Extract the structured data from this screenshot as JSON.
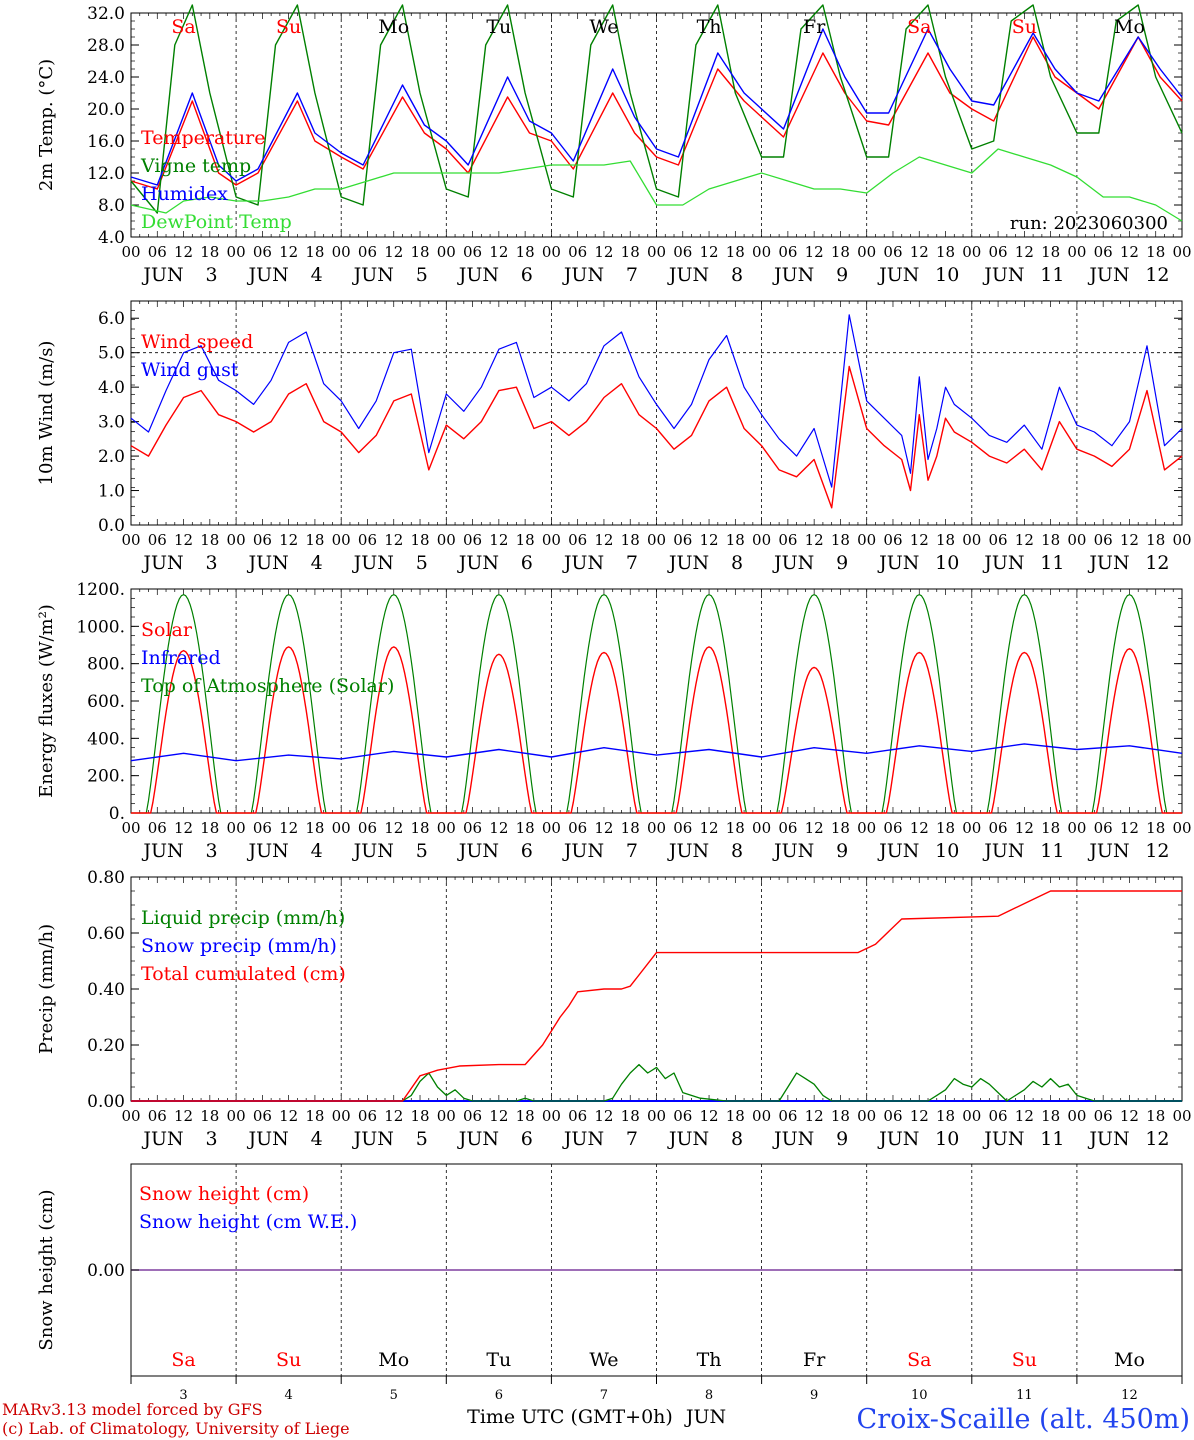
{
  "colors": {
    "red": "#ff0000",
    "green": "#008000",
    "blue": "#0000ff",
    "lightgreen": "#33dd33",
    "purple": "#7f3f9f",
    "footer_red": "#cc0000",
    "station_blue": "#2244ee"
  },
  "days": [
    "Sa",
    "Su",
    "Mo",
    "Tu",
    "We",
    "Th",
    "Fr",
    "Sa",
    "Su",
    "Mo"
  ],
  "weekend_flags": [
    true,
    true,
    false,
    false,
    false,
    false,
    false,
    true,
    true,
    false
  ],
  "dates": [
    "3",
    "4",
    "5",
    "6",
    "7",
    "8",
    "9",
    "10",
    "11",
    "12"
  ],
  "month": "JUN",
  "hour_labels": [
    "00",
    "06",
    "12",
    "18"
  ],
  "run_label": "run: 2023060300",
  "footer": {
    "line1": "MARv3.13 model forced by GFS",
    "line2": "(c) Lab. of Climatology, University of Liege",
    "xlabel": "Time UTC (GMT+0h)",
    "month": "JUN",
    "station": "Croix-Scaille (alt. 450m)"
  },
  "chart_data": [
    {
      "type": "line",
      "id": "temperature",
      "ylabel": "2m Temp. (°C)",
      "ylim": [
        4,
        32
      ],
      "yticks": [
        "4.0",
        "8.0",
        "12.0",
        "16.0",
        "20.0",
        "24.0",
        "28.0",
        "32.0"
      ],
      "x_unit": "hours since 2023-06-03 00 UTC",
      "xlim": [
        0,
        240
      ],
      "series": [
        {
          "name": "Temperature",
          "color": "#ff0000",
          "x": [
            0,
            6,
            14,
            20,
            24,
            29,
            38,
            42,
            48,
            53,
            62,
            67,
            72,
            77,
            86,
            91,
            96,
            101,
            110,
            115,
            120,
            125,
            134,
            140,
            144,
            149,
            158,
            163,
            168,
            173,
            182,
            187,
            192,
            197,
            206,
            211,
            216,
            221,
            230,
            235,
            240
          ],
          "y": [
            11,
            10,
            21,
            12,
            10.5,
            12,
            21,
            16,
            14,
            12.5,
            21.5,
            17,
            15,
            12,
            21.5,
            17,
            16,
            12.5,
            22,
            17,
            14,
            13,
            25,
            21,
            19,
            16.5,
            27,
            22,
            18.5,
            18,
            27,
            22,
            20,
            18.5,
            29,
            24,
            22,
            20,
            29,
            24,
            21
          ]
        },
        {
          "name": "Vigne temp",
          "color": "#008000",
          "x": [
            0,
            6,
            10,
            14,
            18,
            24,
            29,
            33,
            38,
            42,
            48,
            53,
            57,
            62,
            66,
            72,
            77,
            81,
            86,
            90,
            96,
            101,
            105,
            110,
            114,
            120,
            125,
            129,
            134,
            138,
            144,
            149,
            153,
            158,
            162,
            168,
            173,
            177,
            182,
            186,
            192,
            197,
            201,
            206,
            210,
            216,
            221,
            225,
            230,
            234,
            240
          ],
          "y": [
            11,
            7,
            28,
            33,
            22,
            9,
            8,
            28,
            33,
            22,
            9,
            8,
            28,
            33,
            22,
            10,
            9,
            28,
            33,
            22,
            10,
            9,
            28,
            33,
            22,
            10,
            9,
            28,
            33,
            22,
            14,
            14,
            30,
            33,
            24,
            14,
            14,
            30,
            33,
            24,
            15,
            16,
            31,
            33,
            24,
            17,
            17,
            31,
            33,
            24,
            17
          ]
        },
        {
          "name": "Humidex",
          "color": "#0000ff",
          "x": [
            0,
            6,
            14,
            20,
            24,
            29,
            38,
            42,
            48,
            53,
            62,
            67,
            72,
            77,
            86,
            91,
            96,
            101,
            110,
            115,
            120,
            125,
            134,
            140,
            144,
            149,
            158,
            163,
            168,
            173,
            182,
            187,
            192,
            197,
            206,
            211,
            216,
            221,
            230,
            235,
            240
          ],
          "y": [
            11.5,
            10.5,
            22,
            13,
            11,
            12.5,
            22,
            17,
            14.5,
            13,
            23,
            18,
            16,
            13,
            24,
            18.5,
            17,
            13.5,
            25,
            19,
            15,
            14,
            27,
            22,
            20,
            17.5,
            30,
            24,
            19.5,
            19.5,
            30,
            25,
            21,
            20.5,
            29.5,
            25,
            22,
            21,
            29,
            25,
            21.5
          ]
        }
      ]
    },
    {
      "type": "line",
      "id": "dewpoint",
      "series": [
        {
          "name": "DewPoint Temp",
          "color": "#33dd33",
          "x": [
            0,
            4,
            8,
            12,
            18,
            24,
            30,
            36,
            42,
            48,
            54,
            60,
            66,
            72,
            78,
            84,
            90,
            96,
            102,
            108,
            114,
            120,
            126,
            132,
            138,
            144,
            150,
            156,
            162,
            168,
            174,
            180,
            186,
            192,
            198,
            204,
            210,
            216,
            222,
            228,
            234,
            240
          ],
          "y": [
            8,
            7.5,
            7,
            8.5,
            9,
            8.5,
            8.5,
            9,
            10,
            10,
            11,
            12,
            12,
            12,
            12,
            12,
            12.5,
            13,
            13,
            13,
            13.5,
            8,
            8,
            10,
            11,
            12,
            11,
            10,
            10,
            9.5,
            12,
            14,
            13,
            12,
            15,
            14,
            13,
            11.5,
            9,
            9,
            8,
            6
          ]
        }
      ]
    },
    {
      "type": "line",
      "id": "wind",
      "ylabel": "10m Wind (m/s)",
      "ylim": [
        0,
        6.5
      ],
      "yticks": [
        "0.0",
        "1.0",
        "2.0",
        "3.0",
        "4.0",
        "5.0",
        "6.0"
      ],
      "reference_line": 5.0,
      "series": [
        {
          "name": "Wind speed",
          "color": "#ff0000",
          "x": [
            0,
            4,
            8,
            12,
            16,
            20,
            24,
            28,
            32,
            36,
            40,
            44,
            48,
            52,
            56,
            60,
            64,
            68,
            72,
            76,
            80,
            84,
            88,
            92,
            96,
            100,
            104,
            108,
            112,
            116,
            120,
            124,
            128,
            132,
            136,
            140,
            144,
            148,
            152,
            156,
            160,
            164,
            168,
            172,
            176,
            178,
            180,
            182,
            184,
            186,
            188,
            192,
            196,
            200,
            204,
            208,
            212,
            216,
            220,
            224,
            228,
            232,
            236,
            240
          ],
          "y": [
            2.3,
            2,
            2.9,
            3.7,
            3.9,
            3.2,
            3,
            2.7,
            3,
            3.8,
            4.1,
            3,
            2.7,
            2.1,
            2.6,
            3.6,
            3.8,
            1.6,
            2.9,
            2.5,
            3,
            3.9,
            4,
            2.8,
            3,
            2.6,
            3,
            3.7,
            4.1,
            3.2,
            2.8,
            2.2,
            2.6,
            3.6,
            4,
            2.8,
            2.3,
            1.6,
            1.4,
            1.9,
            0.5,
            4.6,
            2.8,
            2.3,
            1.9,
            1,
            3.2,
            1.3,
            2,
            3.1,
            2.7,
            2.4,
            2,
            1.8,
            2.2,
            1.6,
            3,
            2.2,
            2,
            1.7,
            2.2,
            3.9,
            1.6,
            2
          ]
        },
        {
          "name": "Wind gust",
          "color": "#0000ff",
          "x": [
            0,
            4,
            8,
            12,
            16,
            20,
            24,
            28,
            32,
            36,
            40,
            44,
            48,
            52,
            56,
            60,
            64,
            68,
            72,
            76,
            80,
            84,
            88,
            92,
            96,
            100,
            104,
            108,
            112,
            116,
            120,
            124,
            128,
            132,
            136,
            140,
            144,
            148,
            152,
            156,
            160,
            164,
            168,
            172,
            176,
            178,
            180,
            182,
            184,
            186,
            188,
            192,
            196,
            200,
            204,
            208,
            212,
            216,
            220,
            224,
            228,
            232,
            236,
            240
          ],
          "y": [
            3.1,
            2.7,
            3.9,
            5,
            5.2,
            4.2,
            3.9,
            3.5,
            4.2,
            5.3,
            5.6,
            4.1,
            3.6,
            2.8,
            3.6,
            5,
            5.1,
            2.1,
            3.8,
            3.3,
            4,
            5.1,
            5.3,
            3.7,
            4,
            3.6,
            4.1,
            5.2,
            5.6,
            4.3,
            3.5,
            2.8,
            3.5,
            4.8,
            5.5,
            4,
            3.2,
            2.5,
            2,
            2.8,
            1.1,
            6.1,
            3.6,
            3.1,
            2.6,
            1.5,
            4.3,
            1.9,
            2.8,
            4,
            3.5,
            3.1,
            2.6,
            2.4,
            2.9,
            2.2,
            4,
            2.9,
            2.7,
            2.3,
            3,
            5.2,
            2.3,
            2.8
          ]
        }
      ]
    },
    {
      "type": "line",
      "id": "radiation",
      "ylabel": "Energy fluxes (W/m²)",
      "ylim": [
        0,
        1200
      ],
      "yticks": [
        "0.",
        "200.",
        "400.",
        "600.",
        "800.",
        "1000.",
        "1200."
      ],
      "series": [
        {
          "name": "Solar",
          "color": "#ff0000",
          "peaks": [
            870,
            890,
            890,
            850,
            860,
            890,
            780,
            860,
            860,
            880
          ]
        },
        {
          "name": "Infrared",
          "color": "#0000ff",
          "x": [
            0,
            12,
            24,
            36,
            48,
            60,
            72,
            84,
            96,
            108,
            120,
            132,
            144,
            156,
            168,
            180,
            192,
            204,
            216,
            228,
            240
          ],
          "y": [
            280,
            320,
            280,
            310,
            290,
            330,
            300,
            340,
            300,
            350,
            310,
            340,
            300,
            350,
            320,
            360,
            330,
            370,
            340,
            360,
            320
          ]
        },
        {
          "name": "Top of Atmosphere (Solar)",
          "color": "#008000",
          "peak": 1170
        }
      ]
    },
    {
      "type": "line",
      "id": "precip",
      "ylabel": "Precip (mm/h)",
      "ylim": [
        0,
        0.8
      ],
      "yticks": [
        "0.00",
        "0.20",
        "0.40",
        "0.60",
        "0.80"
      ],
      "series": [
        {
          "name": "Liquid precip (mm/h)",
          "color": "#008000",
          "x": [
            0,
            62,
            64,
            66,
            68,
            70,
            72,
            74,
            76,
            78,
            80,
            82,
            84,
            86,
            88,
            90,
            92,
            96,
            108,
            110,
            112,
            114,
            116,
            118,
            120,
            122,
            124,
            126,
            130,
            136,
            148,
            150,
            152,
            154,
            156,
            158,
            160,
            182,
            184,
            186,
            188,
            190,
            192,
            194,
            196,
            198,
            200,
            204,
            206,
            208,
            210,
            212,
            214,
            216,
            218,
            220,
            240
          ],
          "y": [
            0,
            0,
            0.02,
            0.07,
            0.1,
            0.05,
            0.02,
            0.04,
            0.01,
            0,
            0,
            0,
            0,
            0,
            0,
            0.01,
            0,
            0,
            0,
            0.01,
            0.06,
            0.1,
            0.13,
            0.1,
            0.12,
            0.08,
            0.1,
            0.03,
            0.01,
            0,
            0,
            0.05,
            0.1,
            0.08,
            0.06,
            0.02,
            0,
            0,
            0.02,
            0.04,
            0.08,
            0.06,
            0.05,
            0.08,
            0.06,
            0.03,
            0,
            0.04,
            0.07,
            0.05,
            0.08,
            0.05,
            0.06,
            0.02,
            0.01,
            0,
            0
          ]
        },
        {
          "name": "Snow precip (mm/h)",
          "color": "#0000ff",
          "x": [
            0,
            240
          ],
          "y": [
            0,
            0
          ]
        },
        {
          "name": "Total cumulated (cm)",
          "color": "#ff0000",
          "x": [
            0,
            62,
            66,
            68,
            70,
            75,
            84,
            86,
            90,
            94,
            98,
            100,
            102,
            108,
            112,
            114,
            115,
            120,
            124,
            144,
            158,
            166,
            170,
            176,
            198,
            202,
            206,
            210,
            240
          ],
          "y": [
            0,
            0,
            0.09,
            0.1,
            0.11,
            0.125,
            0.13,
            0.13,
            0.13,
            0.2,
            0.3,
            0.34,
            0.39,
            0.4,
            0.4,
            0.41,
            0.43,
            0.53,
            0.53,
            0.53,
            0.53,
            0.53,
            0.56,
            0.65,
            0.66,
            0.69,
            0.72,
            0.75,
            0.75
          ]
        }
      ]
    },
    {
      "type": "line",
      "id": "snow",
      "ylabel": "Snow height (cm)",
      "yticks": [
        "0.00"
      ],
      "series": [
        {
          "name": "Snow height (cm)",
          "color": "#ff0000",
          "x": [
            0,
            240
          ],
          "y": [
            0,
            0
          ]
        },
        {
          "name": "Snow height (cm W.E.)",
          "color": "#0000ff",
          "x": [
            0,
            240
          ],
          "y": [
            0,
            0
          ]
        }
      ]
    }
  ]
}
